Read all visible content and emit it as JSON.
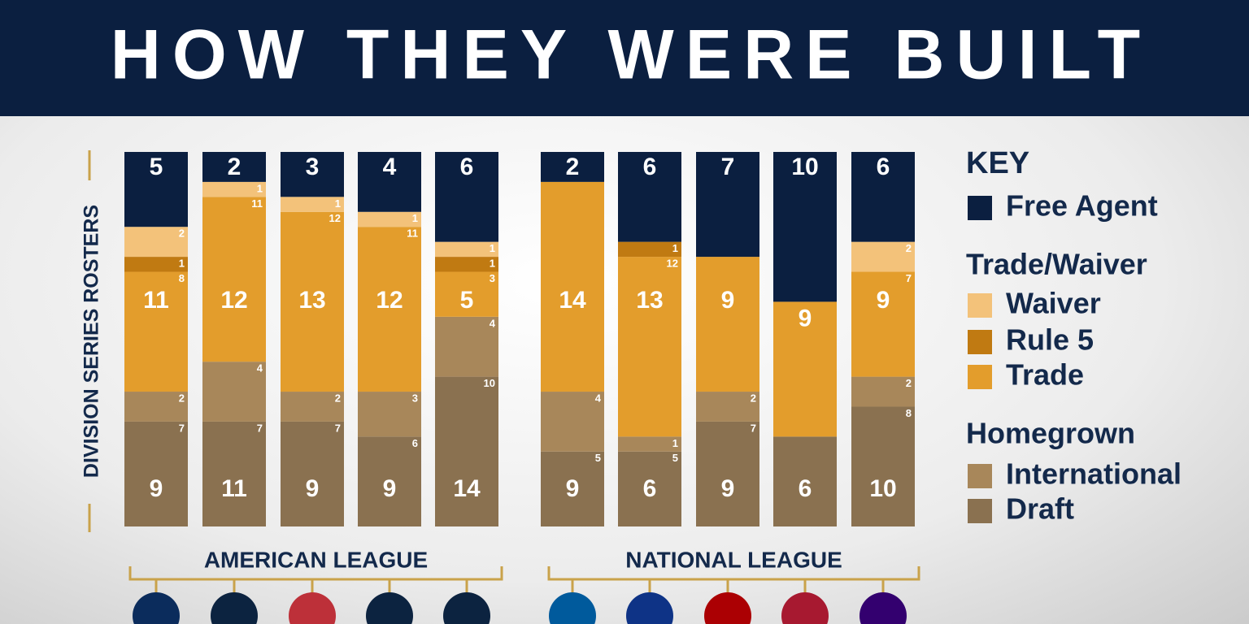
{
  "chart_data": {
    "type": "bar",
    "stacked": true,
    "title": "HOW THEY WERE BUILT",
    "y_label": "DIVISION SERIES ROSTERS",
    "ylim": [
      0,
      25
    ],
    "categories": [
      null,
      null,
      null,
      null,
      null,
      null,
      null,
      null,
      null,
      null
    ],
    "leagues": [
      "AMERICAN LEAGUE",
      "NATIONAL LEAGUE"
    ],
    "legend_title": "KEY",
    "groups": [
      {
        "name": "Trade/Waiver",
        "totals": [
          11,
          12,
          13,
          12,
          5,
          14,
          13,
          9,
          9,
          9
        ]
      },
      {
        "name": "Homegrown",
        "totals": [
          9,
          11,
          9,
          9,
          14,
          9,
          6,
          9,
          6,
          10
        ]
      }
    ],
    "series": [
      {
        "name": "Free Agent",
        "color": "#0b1f40",
        "values": [
          5,
          2,
          3,
          4,
          6,
          2,
          6,
          7,
          10,
          6
        ]
      },
      {
        "name": "Waiver",
        "color": "#f3c27a",
        "group": 0,
        "values": [
          2,
          1,
          1,
          1,
          1,
          0,
          0,
          0,
          0,
          2
        ]
      },
      {
        "name": "Rule 5",
        "color": "#c07a12",
        "group": 0,
        "values": [
          1,
          0,
          0,
          0,
          1,
          0,
          1,
          0,
          0,
          0
        ]
      },
      {
        "name": "Trade",
        "color": "#e39d2c",
        "group": 0,
        "values": [
          8,
          11,
          12,
          11,
          3,
          14,
          12,
          9,
          9,
          7
        ]
      },
      {
        "name": "International",
        "color": "#a8875a",
        "group": 1,
        "values": [
          2,
          4,
          2,
          3,
          4,
          4,
          1,
          2,
          0,
          2
        ]
      },
      {
        "name": "Draft",
        "color": "#8a7150",
        "group": 1,
        "values": [
          7,
          7,
          7,
          6,
          10,
          5,
          5,
          7,
          6,
          8
        ]
      }
    ]
  }
}
